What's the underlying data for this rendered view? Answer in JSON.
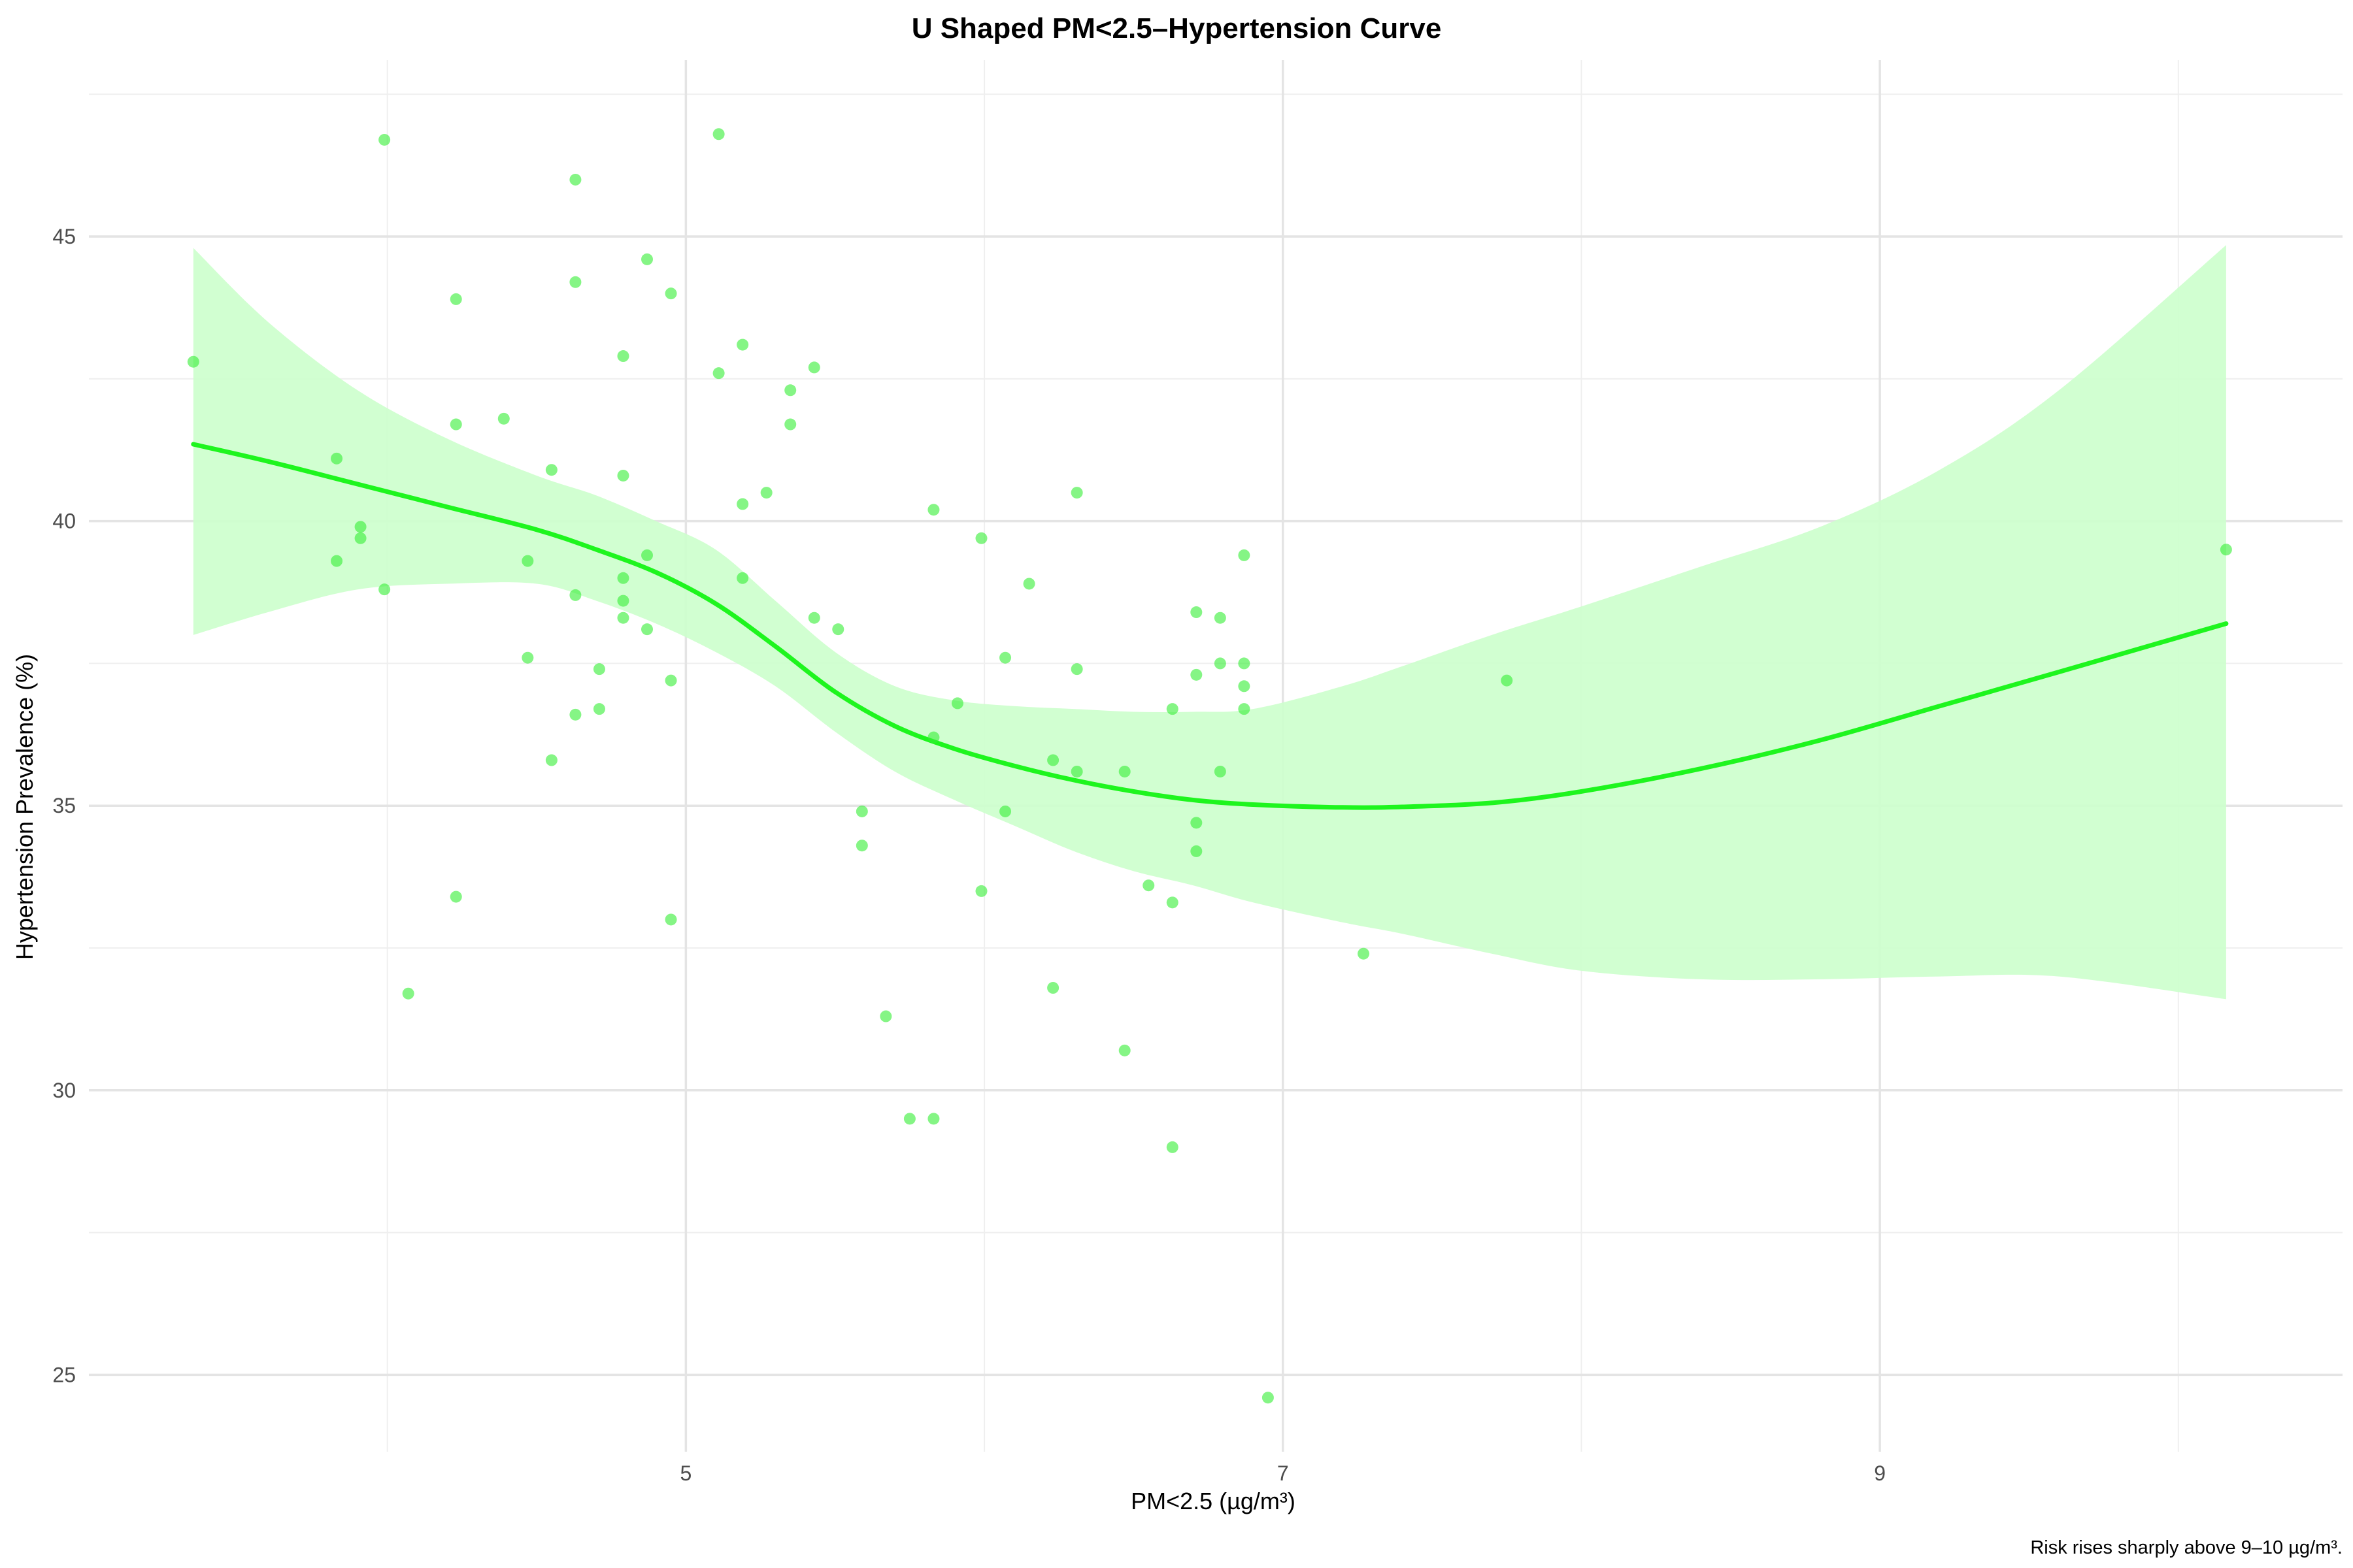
{
  "chart_data": {
    "type": "scatter",
    "title": "U Shaped PM<2.5–Hypertension Curve",
    "xlabel": "PM<2.5 (µg/m³)",
    "ylabel": "Hypertension Prevalence (%)",
    "caption": "Risk rises sharply above 9–10 µg/m³.",
    "xlim": [
      3.0,
      10.55
    ],
    "ylim": [
      23.65,
      48.1
    ],
    "x_ticks": [
      5,
      7,
      9
    ],
    "x_minor_ticks": [
      4,
      6,
      8,
      10
    ],
    "y_ticks": [
      25,
      30,
      35,
      40,
      45
    ],
    "y_minor_ticks": [
      27.5,
      32.5,
      37.5,
      42.5,
      47.5
    ],
    "grid": true,
    "legend": "none",
    "colors": {
      "points": "#33ee33",
      "line": "#1ef51e",
      "band": "#ccffcc"
    },
    "points": [
      {
        "x": 3.35,
        "y": 42.8
      },
      {
        "x": 3.83,
        "y": 41.1
      },
      {
        "x": 3.83,
        "y": 39.3
      },
      {
        "x": 3.91,
        "y": 39.9
      },
      {
        "x": 3.91,
        "y": 39.7
      },
      {
        "x": 3.99,
        "y": 46.7
      },
      {
        "x": 3.99,
        "y": 38.8
      },
      {
        "x": 4.07,
        "y": 31.7
      },
      {
        "x": 4.23,
        "y": 43.9
      },
      {
        "x": 4.23,
        "y": 41.7
      },
      {
        "x": 4.23,
        "y": 33.4
      },
      {
        "x": 4.39,
        "y": 41.8
      },
      {
        "x": 4.47,
        "y": 39.3
      },
      {
        "x": 4.47,
        "y": 37.6
      },
      {
        "x": 4.55,
        "y": 40.9
      },
      {
        "x": 4.55,
        "y": 35.8
      },
      {
        "x": 4.63,
        "y": 46.0
      },
      {
        "x": 4.63,
        "y": 44.2
      },
      {
        "x": 4.63,
        "y": 38.7
      },
      {
        "x": 4.63,
        "y": 36.6
      },
      {
        "x": 4.71,
        "y": 37.4
      },
      {
        "x": 4.71,
        "y": 36.7
      },
      {
        "x": 4.79,
        "y": 42.9
      },
      {
        "x": 4.79,
        "y": 40.8
      },
      {
        "x": 4.79,
        "y": 39.0
      },
      {
        "x": 4.79,
        "y": 38.6
      },
      {
        "x": 4.79,
        "y": 38.3
      },
      {
        "x": 4.87,
        "y": 44.6
      },
      {
        "x": 4.87,
        "y": 39.4
      },
      {
        "x": 4.87,
        "y": 38.1
      },
      {
        "x": 4.95,
        "y": 44.0
      },
      {
        "x": 4.95,
        "y": 37.2
      },
      {
        "x": 4.95,
        "y": 33.0
      },
      {
        "x": 5.11,
        "y": 46.8
      },
      {
        "x": 5.11,
        "y": 42.6
      },
      {
        "x": 5.19,
        "y": 43.1
      },
      {
        "x": 5.19,
        "y": 40.3
      },
      {
        "x": 5.19,
        "y": 39.0
      },
      {
        "x": 5.27,
        "y": 40.5
      },
      {
        "x": 5.35,
        "y": 42.3
      },
      {
        "x": 5.35,
        "y": 41.7
      },
      {
        "x": 5.43,
        "y": 42.7
      },
      {
        "x": 5.43,
        "y": 38.3
      },
      {
        "x": 5.51,
        "y": 38.1
      },
      {
        "x": 5.59,
        "y": 34.9
      },
      {
        "x": 5.59,
        "y": 34.3
      },
      {
        "x": 5.67,
        "y": 31.3
      },
      {
        "x": 5.75,
        "y": 29.5
      },
      {
        "x": 5.83,
        "y": 40.2
      },
      {
        "x": 5.83,
        "y": 36.2
      },
      {
        "x": 5.83,
        "y": 29.5
      },
      {
        "x": 5.91,
        "y": 36.8
      },
      {
        "x": 5.99,
        "y": 39.7
      },
      {
        "x": 5.99,
        "y": 33.5
      },
      {
        "x": 6.07,
        "y": 37.6
      },
      {
        "x": 6.07,
        "y": 34.9
      },
      {
        "x": 6.15,
        "y": 38.9
      },
      {
        "x": 6.23,
        "y": 35.8
      },
      {
        "x": 6.23,
        "y": 31.8
      },
      {
        "x": 6.31,
        "y": 40.5
      },
      {
        "x": 6.31,
        "y": 37.4
      },
      {
        "x": 6.31,
        "y": 35.6
      },
      {
        "x": 6.47,
        "y": 35.6
      },
      {
        "x": 6.47,
        "y": 30.7
      },
      {
        "x": 6.55,
        "y": 33.6
      },
      {
        "x": 6.63,
        "y": 36.7
      },
      {
        "x": 6.63,
        "y": 33.3
      },
      {
        "x": 6.63,
        "y": 29.0
      },
      {
        "x": 6.71,
        "y": 38.4
      },
      {
        "x": 6.71,
        "y": 37.3
      },
      {
        "x": 6.71,
        "y": 34.7
      },
      {
        "x": 6.71,
        "y": 34.2
      },
      {
        "x": 6.79,
        "y": 38.3
      },
      {
        "x": 6.79,
        "y": 37.5
      },
      {
        "x": 6.79,
        "y": 35.6
      },
      {
        "x": 6.87,
        "y": 39.4
      },
      {
        "x": 6.87,
        "y": 37.5
      },
      {
        "x": 6.87,
        "y": 37.1
      },
      {
        "x": 6.87,
        "y": 36.7
      },
      {
        "x": 6.95,
        "y": 24.6
      },
      {
        "x": 7.27,
        "y": 32.4
      },
      {
        "x": 7.75,
        "y": 37.2
      },
      {
        "x": 10.16,
        "y": 39.5
      }
    ],
    "series": [
      {
        "type": "smooth-line",
        "x": [
          3.35,
          3.6,
          3.9,
          4.2,
          4.5,
          4.7,
          4.9,
          5.1,
          5.3,
          5.5,
          5.7,
          5.9,
          6.1,
          6.3,
          6.5,
          6.7,
          6.9,
          7.2,
          7.4,
          7.7,
          8.0,
          8.4,
          8.8,
          9.2,
          9.6,
          10.16
        ],
        "y": [
          41.35,
          41.05,
          40.65,
          40.25,
          39.85,
          39.5,
          39.1,
          38.55,
          37.8,
          37.0,
          36.4,
          36.0,
          35.7,
          35.45,
          35.25,
          35.1,
          35.02,
          34.97,
          34.98,
          35.05,
          35.25,
          35.65,
          36.15,
          36.75,
          37.35,
          38.2
        ]
      },
      {
        "type": "confidence-band",
        "x": [
          3.35,
          3.6,
          3.9,
          4.2,
          4.5,
          4.7,
          4.9,
          5.1,
          5.3,
          5.5,
          5.7,
          5.9,
          6.1,
          6.3,
          6.5,
          6.7,
          6.9,
          7.2,
          7.4,
          7.7,
          8.0,
          8.4,
          8.8,
          9.2,
          9.6,
          10.16
        ],
        "upper": [
          44.8,
          43.5,
          42.3,
          41.45,
          40.8,
          40.45,
          40.0,
          39.5,
          38.6,
          37.7,
          37.1,
          36.85,
          36.75,
          36.7,
          36.65,
          36.65,
          36.7,
          37.1,
          37.45,
          38.0,
          38.5,
          39.2,
          39.9,
          40.9,
          42.3,
          44.85
        ],
        "lower": [
          38.0,
          38.4,
          38.8,
          38.9,
          38.9,
          38.6,
          38.2,
          37.7,
          37.1,
          36.3,
          35.6,
          35.1,
          34.65,
          34.2,
          33.85,
          33.6,
          33.3,
          32.95,
          32.75,
          32.4,
          32.1,
          31.95,
          31.95,
          32.0,
          32.0,
          31.6
        ]
      }
    ]
  }
}
